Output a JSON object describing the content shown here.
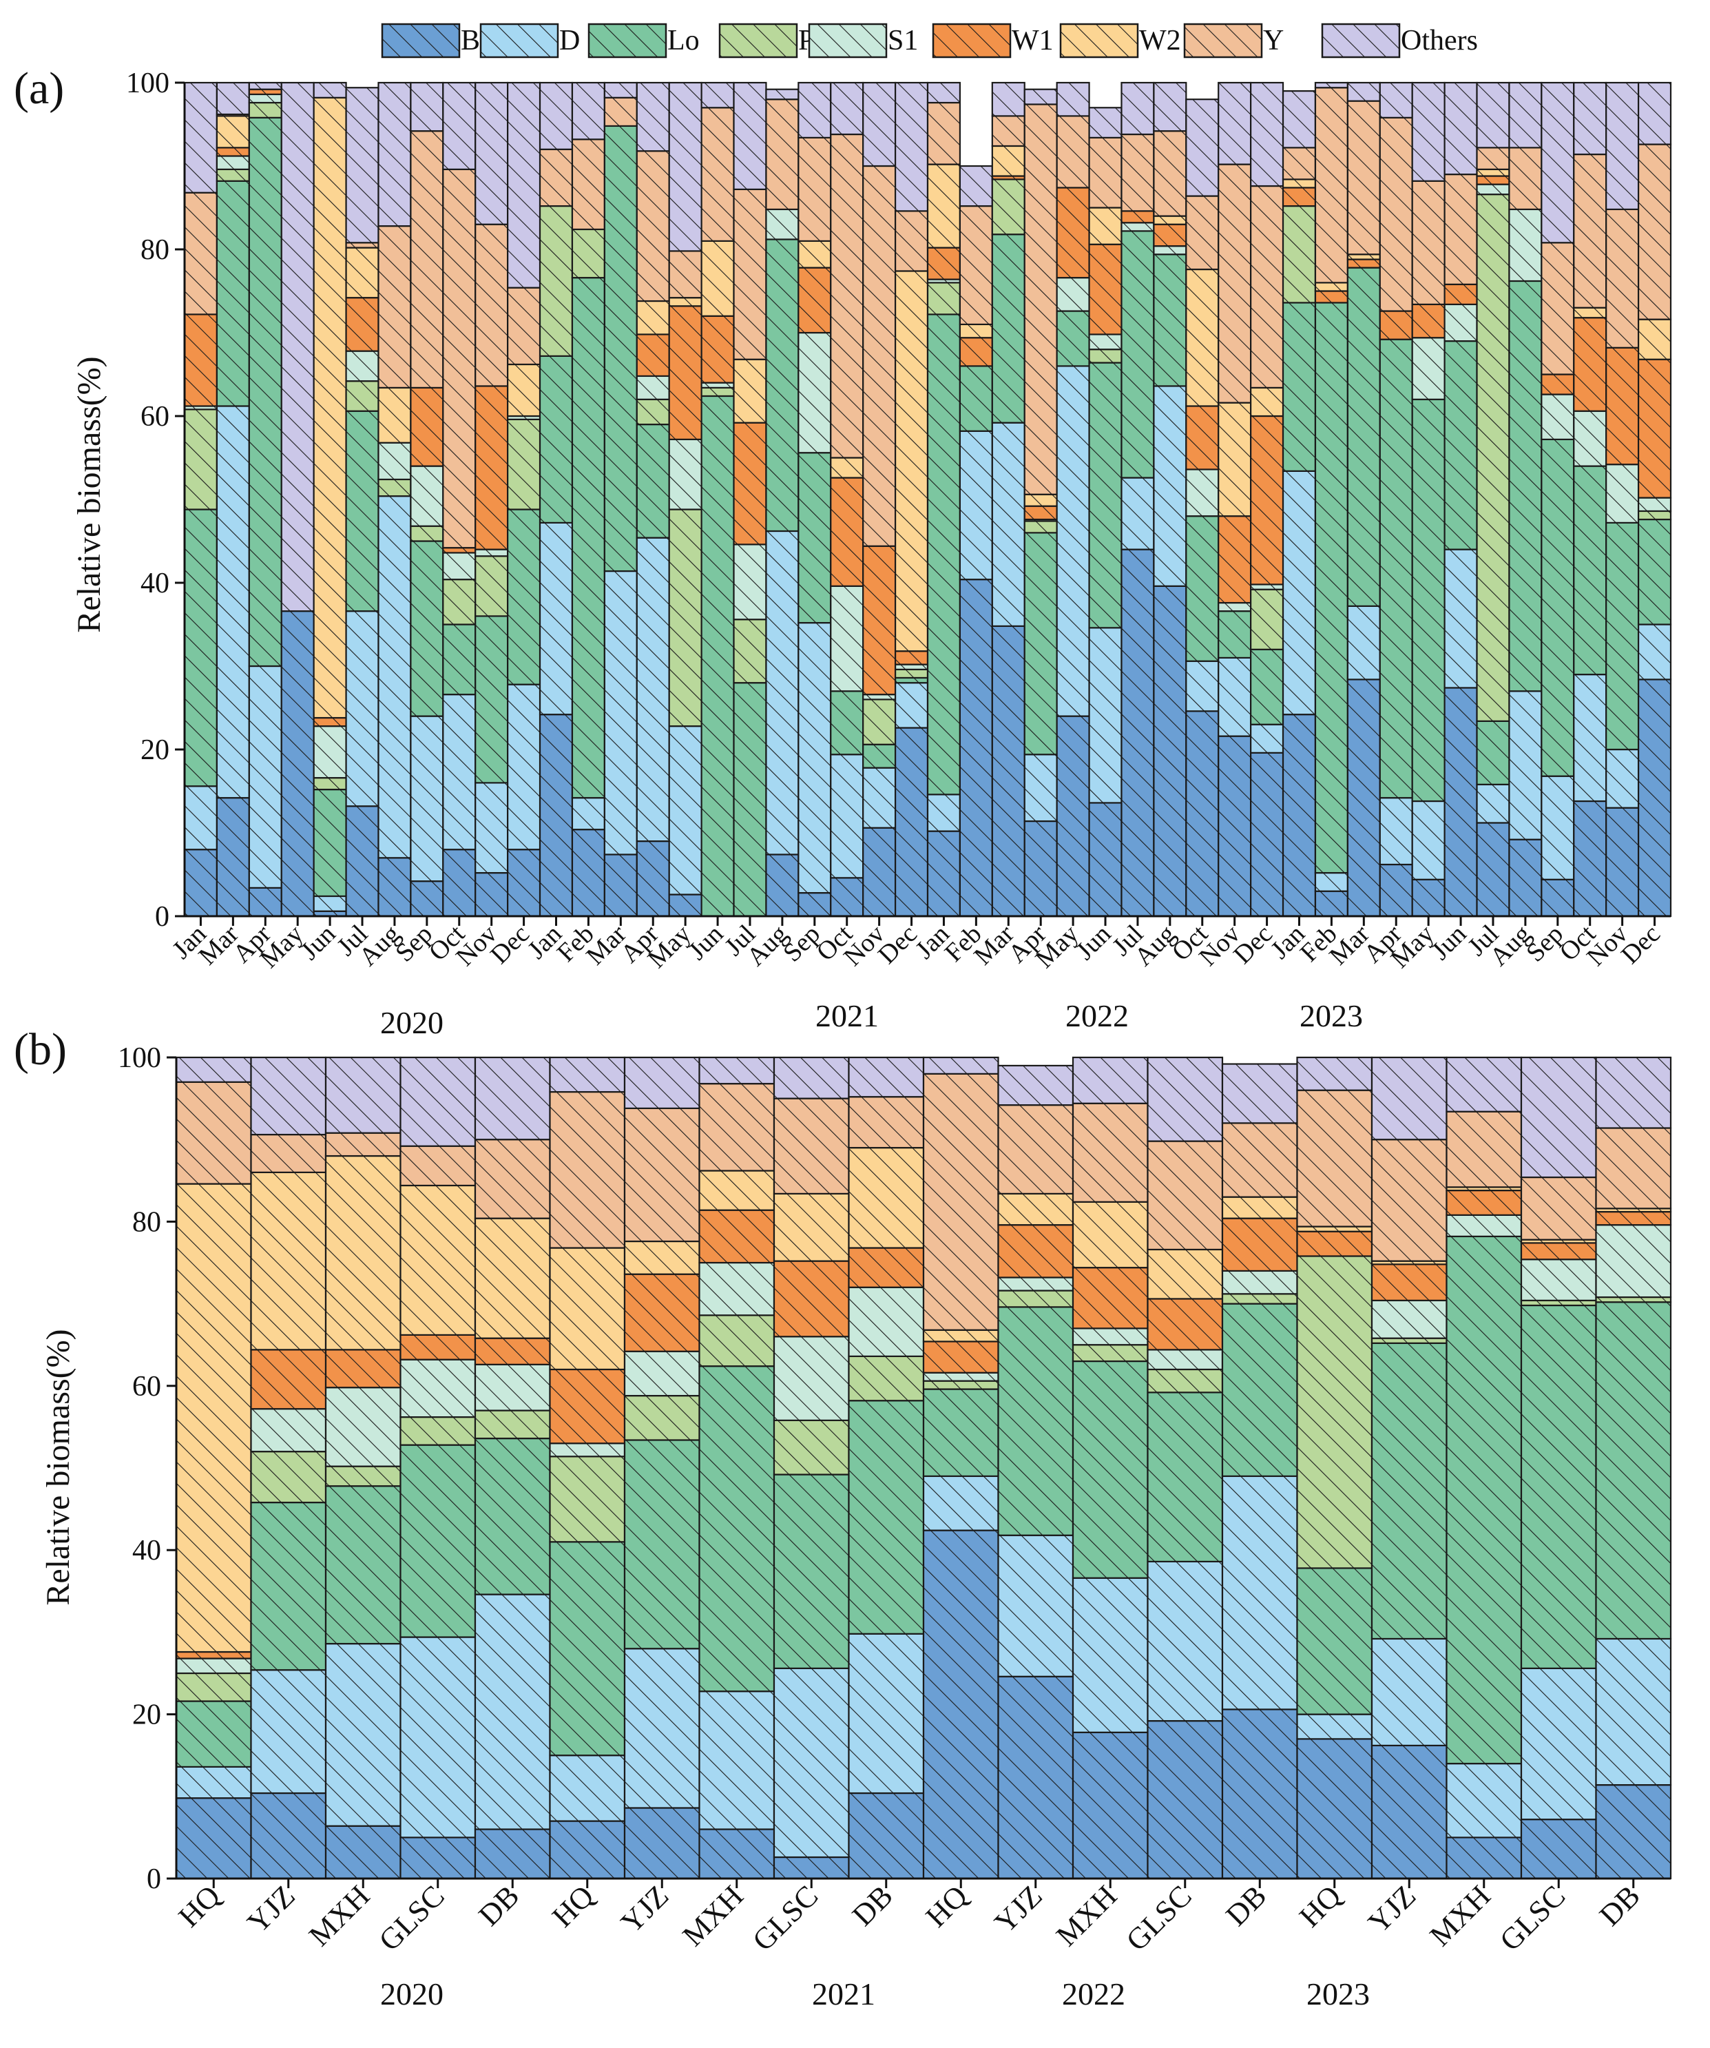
{
  "figure": {
    "legend": [
      {
        "key": "B",
        "label": "B",
        "color": "#6b9fd4"
      },
      {
        "key": "D",
        "label": "D",
        "color": "#a6d8f2"
      },
      {
        "key": "Lo",
        "label": "Lo",
        "color": "#7cc6a0"
      },
      {
        "key": "P",
        "label": "P",
        "color": "#b9d89b"
      },
      {
        "key": "S1",
        "label": "S1",
        "color": "#c9e9dc"
      },
      {
        "key": "W1",
        "label": "W1",
        "color": "#f2924a"
      },
      {
        "key": "W2",
        "label": "W2",
        "color": "#fcd593"
      },
      {
        "key": "Y",
        "label": "Y",
        "color": "#f1bf98"
      },
      {
        "key": "Others",
        "label": "Others",
        "color": "#cbc7e8"
      }
    ]
  },
  "chart_data": [
    {
      "panel": "(a)",
      "type": "bar",
      "stacked": true,
      "hatched": true,
      "ylabel": "Relative biomass(%)",
      "ylim": [
        0,
        100
      ],
      "yticks": [
        0,
        20,
        40,
        60,
        80,
        100
      ],
      "categories": [
        "Jan",
        "Mar",
        "Apr",
        "May",
        "Jun",
        "Jul",
        "Aug",
        "Sep",
        "Oct",
        "Nov",
        "Dec",
        "Jan",
        "Feb",
        "Mar",
        "Apr",
        "May",
        "Jun",
        "Jul",
        "Aug",
        "Sep",
        "Oct",
        "Nov",
        "Dec",
        "Jan",
        "Feb",
        "Mar",
        "Apr",
        "May",
        "Jun",
        "Jul",
        "Aug",
        "Oct",
        "Nov",
        "Dec",
        "Jan",
        "Feb",
        "Mar",
        "Apr",
        "May",
        "Jun",
        "Jul",
        "Aug",
        "Sep",
        "Oct",
        "Nov",
        "Dec"
      ],
      "groups": [
        {
          "label": "2020",
          "start": 0,
          "end": 10
        },
        {
          "label": "2021",
          "start": 11,
          "end": 22
        },
        {
          "label": "2022",
          "start": 23,
          "end": 33
        },
        {
          "label": "2023",
          "start": 34,
          "end": 45
        }
      ],
      "series": [
        {
          "name": "B",
          "values": [
            8,
            14.2,
            3.4,
            36.6,
            0.6,
            13.2,
            7,
            4.2,
            8,
            5.2,
            8,
            24.2,
            10.4,
            7.4,
            9,
            2.6,
            0,
            0,
            7.4,
            2.8,
            4.6,
            10.6,
            22.6,
            10.2,
            40.4,
            34.8,
            11.4,
            24,
            13.6,
            44,
            39.6,
            24.6,
            21.6,
            19.6,
            24.2,
            3,
            28.4,
            6.2,
            4.4,
            27.4,
            11.2,
            9.2,
            4.4,
            13.8,
            13,
            28.4
          ]
        },
        {
          "name": "D",
          "values": [
            7.6,
            47,
            26.6,
            0,
            1.8,
            23.4,
            43.4,
            19.8,
            18.6,
            10.8,
            19.8,
            23,
            3.8,
            34,
            36.4,
            20.2,
            0,
            0,
            38.8,
            32.4,
            14.8,
            7.2,
            5.4,
            4.4,
            17.8,
            24.4,
            8,
            42,
            21,
            8.6,
            24,
            6,
            9.4,
            3.4,
            29.2,
            2.2,
            8.8,
            8,
            9.4,
            16.6,
            4.6,
            17.8,
            12.4,
            15.2,
            7,
            6.6
          ]
        },
        {
          "name": "Lo",
          "values": [
            33.2,
            27,
            65.8,
            0,
            12.8,
            24,
            0,
            21,
            8.4,
            20,
            21,
            20,
            62.4,
            53.4,
            13.6,
            0,
            62.4,
            28,
            35,
            20.4,
            7.6,
            2.8,
            0.6,
            57.6,
            7.8,
            22.6,
            26.6,
            6.6,
            31.8,
            29.6,
            15.8,
            17.4,
            5.6,
            9,
            20.2,
            68.4,
            40.6,
            55,
            48.2,
            25,
            7.6,
            49.2,
            40.4,
            25,
            27.2,
            12.6
          ]
        },
        {
          "name": "P",
          "values": [
            12,
            1.4,
            1.8,
            0,
            1.4,
            3.6,
            2,
            1.8,
            5.4,
            7.2,
            10.8,
            18,
            5.8,
            0,
            3,
            26,
            1,
            7.6,
            0,
            0,
            0,
            5.4,
            1,
            3.8,
            0,
            6.6,
            1.4,
            0,
            1.6,
            0,
            0,
            0,
            0,
            7.2,
            11.6,
            0,
            0,
            0,
            0,
            0,
            63.2,
            0,
            0,
            0,
            0,
            1
          ]
        },
        {
          "name": "S1",
          "values": [
            0.4,
            1.6,
            1,
            0,
            6.2,
            3.6,
            4.4,
            7.2,
            3.2,
            0.8,
            0.4,
            0,
            0,
            0,
            2.8,
            8.4,
            0.6,
            9,
            3.6,
            14.4,
            12.6,
            0.6,
            0.6,
            0.4,
            0,
            0,
            0.2,
            4,
            1.8,
            1,
            1,
            5.6,
            1,
            0.6,
            0,
            0,
            0,
            0,
            7.4,
            4.4,
            1.2,
            8.6,
            5.4,
            6.6,
            7,
            1.6
          ]
        },
        {
          "name": "W1",
          "values": [
            11,
            1,
            0.6,
            0,
            1,
            6.4,
            0,
            9.4,
            0.6,
            19.6,
            0,
            0,
            0,
            0,
            5,
            16,
            8,
            14.6,
            0,
            7.8,
            13,
            17.8,
            1.6,
            3.8,
            3.4,
            0.4,
            1.6,
            10.8,
            10.8,
            1.4,
            2.6,
            7.6,
            10.4,
            20.2,
            2.2,
            1.4,
            1,
            3.4,
            4,
            2.4,
            1,
            0,
            2.4,
            11.2,
            14,
            16.6
          ]
        },
        {
          "name": "W2",
          "values": [
            0,
            3.8,
            0,
            0,
            74.4,
            6,
            6.6,
            0,
            0,
            0,
            6.2,
            0,
            0,
            0,
            4,
            1,
            9,
            7.6,
            0,
            3.2,
            2.4,
            0,
            45.6,
            10,
            1.6,
            3.6,
            1.4,
            0,
            4.4,
            0,
            1,
            16.4,
            13.6,
            3.4,
            1,
            1,
            0.6,
            0,
            0,
            0,
            0.8,
            0,
            0,
            1.2,
            0,
            4.8
          ]
        },
        {
          "name": "Y",
          "values": [
            14.6,
            0.2,
            0,
            0,
            0,
            0.6,
            19.4,
            30.8,
            45.4,
            19.4,
            9.2,
            6.8,
            10.8,
            3.4,
            18,
            5.6,
            16,
            20.4,
            13.2,
            12.4,
            38.8,
            45.6,
            7.2,
            7.4,
            14.2,
            3.6,
            46.8,
            8.6,
            8.4,
            9.2,
            10.2,
            8.8,
            28.6,
            24.2,
            3.8,
            23.4,
            18.4,
            23.2,
            14.8,
            13.2,
            2.6,
            7.4,
            15.8,
            18.4,
            16.6,
            21
          ]
        },
        {
          "name": "Others",
          "values": [
            13.2,
            3.8,
            0.8,
            63.4,
            1.8,
            18.6,
            17.2,
            5.8,
            10.4,
            17,
            24.6,
            8,
            6.8,
            1.8,
            8.2,
            20.2,
            3,
            12.8,
            1.2,
            6.6,
            6.2,
            10,
            15.4,
            2.4,
            4.8,
            4,
            1.8,
            4,
            3.6,
            6.2,
            5.8,
            11.6,
            9.8,
            12.4,
            6.8,
            0.6,
            2.2,
            4.2,
            11.8,
            11,
            7.8,
            7.8,
            19.2,
            8.6,
            15.2,
            7.4
          ]
        }
      ]
    },
    {
      "panel": "(b)",
      "type": "bar",
      "stacked": true,
      "hatched": true,
      "ylabel": "Relative biomass(%)",
      "ylim": [
        0,
        100
      ],
      "yticks": [
        0,
        20,
        40,
        60,
        80,
        100
      ],
      "categories": [
        "HQ",
        "YJZ",
        "MXH",
        "GLSC",
        "DB",
        "HQ",
        "YJZ",
        "MXH",
        "GLSC",
        "DB",
        "HQ",
        "YJZ",
        "MXH",
        "GLSC",
        "DB",
        "HQ",
        "YJZ",
        "MXH",
        "GLSC",
        "DB"
      ],
      "groups": [
        {
          "label": "2020",
          "start": 0,
          "end": 4
        },
        {
          "label": "2021",
          "start": 5,
          "end": 9
        },
        {
          "label": "2022",
          "start": 10,
          "end": 14
        },
        {
          "label": "2023",
          "start": 15,
          "end": 19
        }
      ],
      "series": [
        {
          "name": "B",
          "values": [
            9.8,
            10.4,
            6.4,
            5,
            6,
            7,
            8.6,
            6,
            2.6,
            10.4,
            42.4,
            24.6,
            17.8,
            19.2,
            20.6,
            17,
            16.2,
            5,
            7.2,
            11.4
          ]
        },
        {
          "name": "D",
          "values": [
            3.8,
            15,
            22.2,
            24.4,
            28.6,
            8,
            19.4,
            16.8,
            23,
            19.4,
            6.6,
            17.2,
            18.8,
            19.4,
            28.4,
            3,
            13,
            9,
            18.4,
            17.8
          ]
        },
        {
          "name": "Lo",
          "values": [
            8,
            20.4,
            19.2,
            23.4,
            19,
            26,
            25.4,
            39.6,
            23.6,
            28.4,
            10.6,
            27.8,
            26.4,
            20.6,
            21,
            17.8,
            36,
            64.2,
            44.2,
            41
          ]
        },
        {
          "name": "P",
          "values": [
            3.4,
            6.2,
            2.4,
            3.4,
            3.4,
            10.4,
            5.4,
            6.2,
            6.6,
            5.4,
            1,
            2,
            2,
            2.8,
            1.2,
            38,
            0.6,
            0,
            0.6,
            0.6
          ]
        },
        {
          "name": "S1",
          "values": [
            1.8,
            5.2,
            9.6,
            7,
            5.6,
            1.6,
            5.4,
            6.4,
            10.2,
            8.4,
            1,
            1.6,
            2,
            2.4,
            2.8,
            0,
            4.6,
            2.6,
            5,
            8.8
          ]
        },
        {
          "name": "W1",
          "values": [
            0.8,
            7.2,
            4.6,
            3,
            3.2,
            9,
            9.4,
            6.4,
            9.2,
            4.8,
            3.8,
            6.4,
            7.4,
            6.2,
            6.4,
            3,
            4.4,
            3,
            2,
            1.6
          ]
        },
        {
          "name": "W2",
          "values": [
            57,
            21.6,
            23.6,
            18.2,
            14.6,
            14.8,
            4,
            4.8,
            8.2,
            12.2,
            1.4,
            3.8,
            8,
            6,
            2.6,
            0.6,
            0.4,
            0.4,
            0.4,
            0.4
          ]
        },
        {
          "name": "Y",
          "values": [
            12.4,
            4.6,
            2.8,
            4.8,
            9.6,
            19,
            16.2,
            10.6,
            11.6,
            6.2,
            31.2,
            10.8,
            12,
            13.2,
            9,
            16.6,
            14.8,
            9.2,
            7.6,
            9.8
          ]
        },
        {
          "name": "Others",
          "values": [
            3,
            9.4,
            9.2,
            10.8,
            10,
            4.2,
            6.2,
            3.2,
            5,
            4.8,
            2,
            4.8,
            5.6,
            10.2,
            7.2,
            4,
            10,
            6.6,
            14.6,
            8.6
          ]
        }
      ]
    }
  ]
}
